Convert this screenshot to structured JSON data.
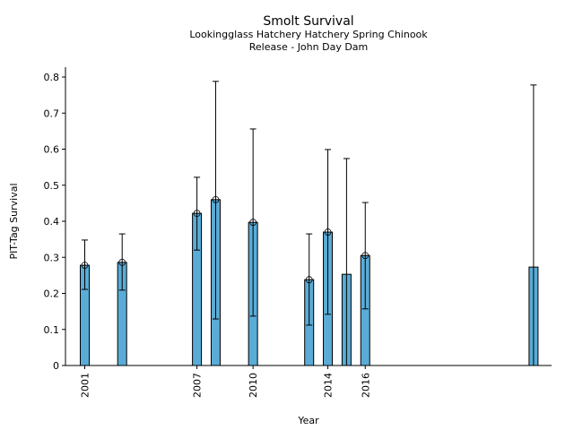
{
  "chart_data": {
    "type": "bar",
    "title": "Smolt Survival",
    "subtitle_line1": "Lookingglass Hatchery Hatchery Spring Chinook",
    "subtitle_line2": "Release - John Day Dam",
    "xlabel": "Year",
    "ylabel": "PIT-Tag Survival",
    "xlim": [
      2000,
      2026
    ],
    "ylim": [
      0,
      0.82
    ],
    "xticks": [
      2001,
      2007,
      2010,
      2014,
      2016
    ],
    "xtick_labels": [
      "2001",
      "2007",
      "2010",
      "2014",
      "2016"
    ],
    "yticks": [
      0,
      0.1,
      0.2,
      0.3,
      0.4,
      0.5,
      0.6,
      0.7,
      0.8
    ],
    "ytick_labels": [
      "0",
      "0.1",
      "0.2",
      "0.3",
      "0.4",
      "0.5",
      "0.6",
      "0.7",
      "0.8"
    ],
    "bar_color": "#5aacd6",
    "bars": [
      {
        "year": 2001,
        "value": 0.278,
        "err_low": 0.211,
        "err_high": 0.348,
        "marker": true
      },
      {
        "year": 2003,
        "value": 0.286,
        "err_low": 0.209,
        "err_high": 0.365,
        "marker": true
      },
      {
        "year": 2007,
        "value": 0.422,
        "err_low": 0.32,
        "err_high": 0.522,
        "marker": true
      },
      {
        "year": 2008,
        "value": 0.46,
        "err_low": 0.129,
        "err_high": 0.788,
        "marker": true
      },
      {
        "year": 2010,
        "value": 0.397,
        "err_low": 0.137,
        "err_high": 0.656,
        "marker": true
      },
      {
        "year": 2013,
        "value": 0.238,
        "err_low": 0.112,
        "err_high": 0.365,
        "marker": true
      },
      {
        "year": 2014,
        "value": 0.37,
        "err_low": 0.142,
        "err_high": 0.599,
        "marker": true
      },
      {
        "year": 2015,
        "value": 0.253,
        "err_low": 0.0,
        "err_high": 0.574,
        "marker": false
      },
      {
        "year": 2016,
        "value": 0.305,
        "err_low": 0.157,
        "err_high": 0.452,
        "marker": true
      },
      {
        "year": 2025,
        "value": 0.273,
        "err_low": 0.0,
        "err_high": 0.778,
        "marker": false
      }
    ],
    "grid": false,
    "legend": "none"
  }
}
